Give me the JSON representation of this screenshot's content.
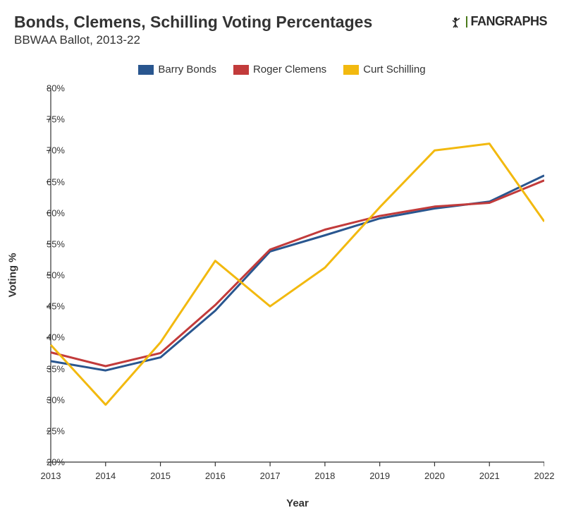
{
  "title": "Bonds, Clemens, Schilling Voting Percentages",
  "subtitle": "BBWAA Ballot, 2013-22",
  "logo_text": "FANGRAPHS",
  "x_label": "Year",
  "y_label": "Voting %",
  "chart": {
    "type": "line",
    "background_color": "#ffffff",
    "axis_color": "#333333",
    "axis_line_width": 1.2,
    "tick_length": 6,
    "tick_fontsize": 13,
    "label_fontsize": 15,
    "title_fontsize": 23,
    "subtitle_fontsize": 17,
    "line_width": 3,
    "xlim": [
      2013,
      2022
    ],
    "ylim": [
      20,
      80
    ],
    "ytick_step": 5,
    "xtick_step": 1,
    "y_tick_suffix": "%",
    "years": [
      2013,
      2014,
      2015,
      2016,
      2017,
      2018,
      2019,
      2020,
      2021,
      2022
    ],
    "series": [
      {
        "name": "Barry Bonds",
        "color": "#29568f",
        "values": [
          36.2,
          34.7,
          36.8,
          44.3,
          53.8,
          56.4,
          59.1,
          60.7,
          61.8,
          66.0
        ]
      },
      {
        "name": "Roger Clemens",
        "color": "#c23b3b",
        "values": [
          37.6,
          35.4,
          37.5,
          45.2,
          54.1,
          57.3,
          59.5,
          61.0,
          61.6,
          65.2
        ]
      },
      {
        "name": "Curt Schilling",
        "color": "#f2b90f",
        "values": [
          38.8,
          29.2,
          39.2,
          52.3,
          45.0,
          51.2,
          60.9,
          70.0,
          71.1,
          58.6
        ]
      }
    ]
  }
}
